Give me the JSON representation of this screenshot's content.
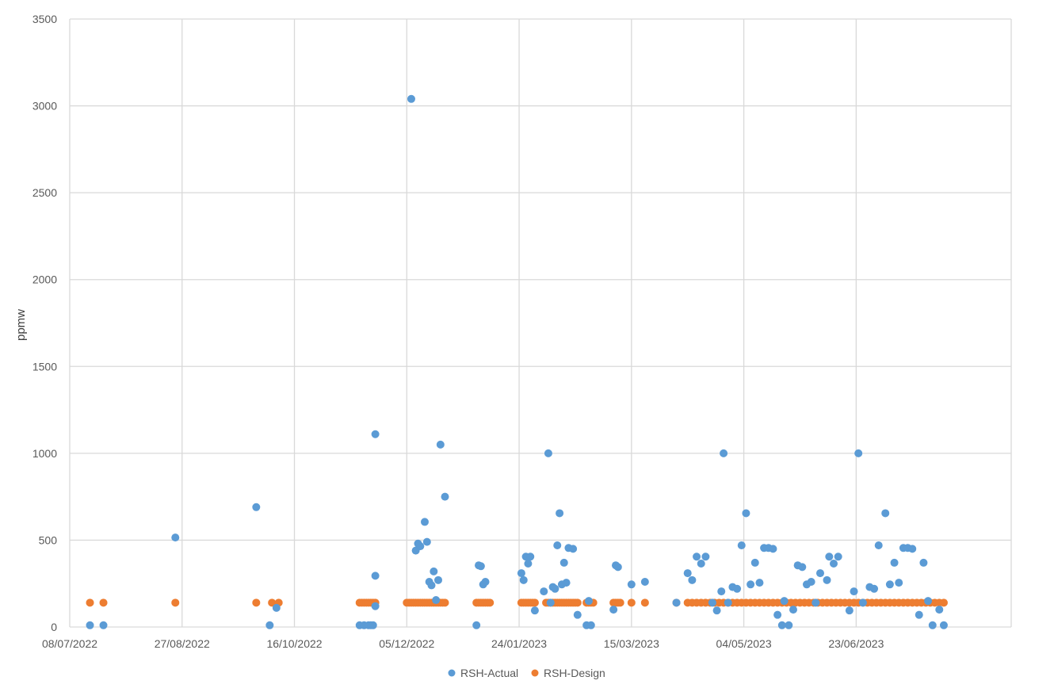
{
  "chart_data": {
    "type": "scatter",
    "title": "",
    "xlabel": "",
    "ylabel": "ppmw",
    "x_axis_type": "date",
    "xlim": [
      "2022-07-08",
      "2023-08-31"
    ],
    "ylim": [
      0,
      3500
    ],
    "x_ticks": [
      "08/07/2022",
      "27/08/2022",
      "16/10/2022",
      "05/12/2022",
      "24/01/2023",
      "15/03/2023",
      "04/05/2023",
      "23/06/2023"
    ],
    "y_ticks": [
      "0",
      "500",
      "1000",
      "1500",
      "2000",
      "2500",
      "3000",
      "3500"
    ],
    "grid": true,
    "legend_position": "bottom",
    "series": [
      {
        "name": "RSH-Actual",
        "color": "#5B9BD5",
        "points": [
          [
            "2022-07-17",
            10
          ],
          [
            "2022-07-23",
            10
          ],
          [
            "2022-08-24",
            515
          ],
          [
            "2022-09-29",
            690
          ],
          [
            "2022-10-05",
            10
          ],
          [
            "2022-10-08",
            110
          ],
          [
            "2022-11-14",
            10
          ],
          [
            "2022-11-16",
            10
          ],
          [
            "2022-11-18",
            10
          ],
          [
            "2022-11-19",
            10
          ],
          [
            "2022-11-20",
            10
          ],
          [
            "2022-11-21",
            1110
          ],
          [
            "2022-11-21",
            295
          ],
          [
            "2022-11-21",
            120
          ],
          [
            "2022-12-07",
            3040
          ],
          [
            "2022-12-09",
            440
          ],
          [
            "2022-12-10",
            480
          ],
          [
            "2022-12-11",
            465
          ],
          [
            "2022-12-13",
            605
          ],
          [
            "2022-12-14",
            490
          ],
          [
            "2022-12-15",
            260
          ],
          [
            "2022-12-16",
            240
          ],
          [
            "2022-12-17",
            320
          ],
          [
            "2022-12-18",
            155
          ],
          [
            "2022-12-19",
            270
          ],
          [
            "2022-12-20",
            1050
          ],
          [
            "2022-12-22",
            750
          ],
          [
            "2023-01-05",
            10
          ],
          [
            "2023-01-06",
            355
          ],
          [
            "2023-01-07",
            350
          ],
          [
            "2023-01-08",
            245
          ],
          [
            "2023-01-09",
            260
          ],
          [
            "2023-01-25",
            310
          ],
          [
            "2023-01-26",
            270
          ],
          [
            "2023-01-27",
            405
          ],
          [
            "2023-01-28",
            365
          ],
          [
            "2023-01-29",
            405
          ],
          [
            "2023-01-31",
            95
          ],
          [
            "2023-02-04",
            205
          ],
          [
            "2023-02-06",
            1000
          ],
          [
            "2023-02-07",
            140
          ],
          [
            "2023-02-08",
            230
          ],
          [
            "2023-02-09",
            220
          ],
          [
            "2023-02-10",
            470
          ],
          [
            "2023-02-11",
            655
          ],
          [
            "2023-02-12",
            245
          ],
          [
            "2023-02-13",
            370
          ],
          [
            "2023-02-14",
            255
          ],
          [
            "2023-02-15",
            455
          ],
          [
            "2023-02-17",
            450
          ],
          [
            "2023-02-19",
            70
          ],
          [
            "2023-02-23",
            10
          ],
          [
            "2023-02-24",
            150
          ],
          [
            "2023-02-25",
            10
          ],
          [
            "2023-03-07",
            100
          ],
          [
            "2023-03-08",
            355
          ],
          [
            "2023-03-09",
            345
          ],
          [
            "2023-03-15",
            245
          ],
          [
            "2023-03-21",
            260
          ],
          [
            "2023-04-04",
            140
          ],
          [
            "2023-04-09",
            310
          ],
          [
            "2023-04-11",
            270
          ],
          [
            "2023-04-13",
            405
          ],
          [
            "2023-04-15",
            365
          ],
          [
            "2023-04-17",
            405
          ],
          [
            "2023-04-20",
            140
          ],
          [
            "2023-04-22",
            95
          ],
          [
            "2023-04-24",
            205
          ],
          [
            "2023-04-25",
            1000
          ],
          [
            "2023-04-27",
            140
          ],
          [
            "2023-04-29",
            230
          ],
          [
            "2023-05-01",
            220
          ],
          [
            "2023-05-03",
            470
          ],
          [
            "2023-05-05",
            655
          ],
          [
            "2023-05-07",
            245
          ],
          [
            "2023-05-09",
            370
          ],
          [
            "2023-05-11",
            255
          ],
          [
            "2023-05-13",
            455
          ],
          [
            "2023-05-15",
            455
          ],
          [
            "2023-05-17",
            450
          ],
          [
            "2023-05-19",
            70
          ],
          [
            "2023-05-21",
            10
          ],
          [
            "2023-05-22",
            150
          ],
          [
            "2023-05-24",
            10
          ],
          [
            "2023-05-26",
            100
          ],
          [
            "2023-05-28",
            355
          ],
          [
            "2023-05-30",
            345
          ],
          [
            "2023-06-01",
            245
          ],
          [
            "2023-06-03",
            260
          ],
          [
            "2023-06-05",
            140
          ],
          [
            "2023-06-07",
            310
          ],
          [
            "2023-06-10",
            270
          ],
          [
            "2023-06-11",
            405
          ],
          [
            "2023-06-13",
            365
          ],
          [
            "2023-06-15",
            405
          ],
          [
            "2023-06-20",
            95
          ],
          [
            "2023-06-22",
            205
          ],
          [
            "2023-06-24",
            1000
          ],
          [
            "2023-06-26",
            140
          ],
          [
            "2023-06-29",
            230
          ],
          [
            "2023-07-01",
            220
          ],
          [
            "2023-07-03",
            470
          ],
          [
            "2023-07-06",
            655
          ],
          [
            "2023-07-08",
            245
          ],
          [
            "2023-07-10",
            370
          ],
          [
            "2023-07-12",
            255
          ],
          [
            "2023-07-14",
            455
          ],
          [
            "2023-07-16",
            455
          ],
          [
            "2023-07-18",
            450
          ],
          [
            "2023-07-21",
            70
          ],
          [
            "2023-07-23",
            370
          ],
          [
            "2023-07-25",
            150
          ],
          [
            "2023-07-27",
            10
          ],
          [
            "2023-07-30",
            100
          ],
          [
            "2023-08-01",
            10
          ]
        ]
      },
      {
        "name": "RSH-Design",
        "color": "#ED7D31",
        "constant_value": 140,
        "dates": [
          "2022-07-17",
          "2022-07-23",
          "2022-08-24",
          "2022-09-29",
          "2022-10-06",
          "2022-10-09",
          "2022-11-14",
          "2022-11-15",
          "2022-11-16",
          "2022-11-17",
          "2022-11-18",
          "2022-11-19",
          "2022-11-20",
          "2022-11-21",
          "2022-12-05",
          "2022-12-06",
          "2022-12-07",
          "2022-12-08",
          "2022-12-09",
          "2022-12-10",
          "2022-12-11",
          "2022-12-12",
          "2022-12-13",
          "2022-12-14",
          "2022-12-15",
          "2022-12-16",
          "2022-12-17",
          "2022-12-18",
          "2022-12-19",
          "2022-12-20",
          "2022-12-21",
          "2022-12-22",
          "2023-01-05",
          "2023-01-06",
          "2023-01-07",
          "2023-01-08",
          "2023-01-09",
          "2023-01-10",
          "2023-01-11",
          "2023-01-25",
          "2023-01-26",
          "2023-01-27",
          "2023-01-28",
          "2023-01-29",
          "2023-01-30",
          "2023-01-31",
          "2023-02-05",
          "2023-02-06",
          "2023-02-07",
          "2023-02-08",
          "2023-02-09",
          "2023-02-10",
          "2023-02-11",
          "2023-02-12",
          "2023-02-13",
          "2023-02-14",
          "2023-02-15",
          "2023-02-16",
          "2023-02-17",
          "2023-02-18",
          "2023-02-19",
          "2023-02-23",
          "2023-02-24",
          "2023-02-25",
          "2023-02-26",
          "2023-03-07",
          "2023-03-08",
          "2023-03-09",
          "2023-03-10",
          "2023-03-15",
          "2023-03-21",
          "2023-04-04",
          "2023-04-09",
          "2023-04-11",
          "2023-04-13",
          "2023-04-15",
          "2023-04-17",
          "2023-04-19",
          "2023-04-21",
          "2023-04-23",
          "2023-04-25",
          "2023-04-27",
          "2023-04-29",
          "2023-05-01",
          "2023-05-03",
          "2023-05-05",
          "2023-05-07",
          "2023-05-09",
          "2023-05-11",
          "2023-05-13",
          "2023-05-15",
          "2023-05-17",
          "2023-05-19",
          "2023-05-21",
          "2023-05-23",
          "2023-05-25",
          "2023-05-27",
          "2023-05-29",
          "2023-05-31",
          "2023-06-02",
          "2023-06-04",
          "2023-06-06",
          "2023-06-08",
          "2023-06-10",
          "2023-06-12",
          "2023-06-14",
          "2023-06-16",
          "2023-06-18",
          "2023-06-20",
          "2023-06-22",
          "2023-06-24",
          "2023-06-26",
          "2023-06-28",
          "2023-06-30",
          "2023-07-02",
          "2023-07-04",
          "2023-07-06",
          "2023-07-08",
          "2023-07-10",
          "2023-07-12",
          "2023-07-14",
          "2023-07-16",
          "2023-07-18",
          "2023-07-20",
          "2023-07-22",
          "2023-07-24",
          "2023-07-26",
          "2023-07-28",
          "2023-07-30",
          "2023-08-01"
        ]
      }
    ]
  }
}
